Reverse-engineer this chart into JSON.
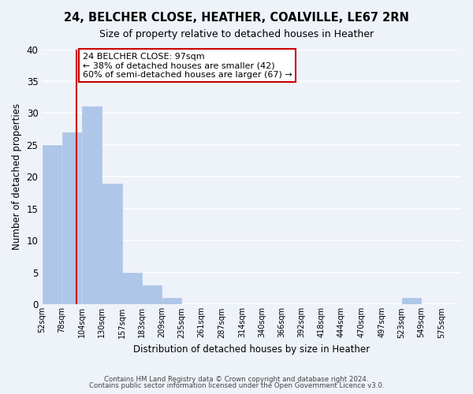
{
  "title": "24, BELCHER CLOSE, HEATHER, COALVILLE, LE67 2RN",
  "subtitle": "Size of property relative to detached houses in Heather",
  "xlabel": "Distribution of detached houses by size in Heather",
  "ylabel": "Number of detached properties",
  "bar_edges": [
    52,
    78,
    104,
    130,
    157,
    183,
    209,
    235,
    261,
    287,
    314,
    340,
    366,
    392,
    418,
    444,
    470,
    497,
    523,
    549,
    575,
    601
  ],
  "bar_heights": [
    25,
    27,
    31,
    19,
    5,
    3,
    1,
    0,
    0,
    0,
    0,
    0,
    0,
    0,
    0,
    0,
    0,
    0,
    1,
    0,
    0
  ],
  "bar_color": "#aec6e8",
  "bar_edgecolor": "#aec6e8",
  "ylim": [
    0,
    40
  ],
  "yticks": [
    0,
    5,
    10,
    15,
    20,
    25,
    30,
    35,
    40
  ],
  "property_line_x": 97,
  "property_line_color": "#cc0000",
  "annotation_text": "24 BELCHER CLOSE: 97sqm\n← 38% of detached houses are smaller (42)\n60% of semi-detached houses are larger (67) →",
  "annotation_box_color": "#ffffff",
  "annotation_box_edgecolor": "#cc0000",
  "footer_line1": "Contains HM Land Registry data © Crown copyright and database right 2024.",
  "footer_line2": "Contains public sector information licensed under the Open Government Licence v3.0.",
  "background_color": "#eef2f9",
  "plot_background_color": "#eef2f9",
  "tick_labels": [
    "52sqm",
    "78sqm",
    "104sqm",
    "130sqm",
    "157sqm",
    "183sqm",
    "209sqm",
    "235sqm",
    "261sqm",
    "287sqm",
    "314sqm",
    "340sqm",
    "366sqm",
    "392sqm",
    "418sqm",
    "444sqm",
    "470sqm",
    "497sqm",
    "523sqm",
    "549sqm",
    "575sqm"
  ]
}
